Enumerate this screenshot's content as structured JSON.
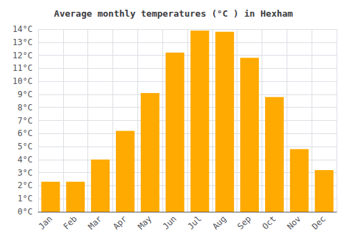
{
  "chart_data": {
    "type": "bar",
    "title": "Average monthly temperatures (°C ) in Hexham",
    "categories": [
      "Jan",
      "Feb",
      "Mar",
      "Apr",
      "May",
      "Jun",
      "Jul",
      "Aug",
      "Sep",
      "Oct",
      "Nov",
      "Dec"
    ],
    "values": [
      2.3,
      2.3,
      4.0,
      6.2,
      9.1,
      12.2,
      13.9,
      13.8,
      11.8,
      8.8,
      4.8,
      3.2
    ],
    "color": "#FFAA00",
    "ylim": [
      0,
      14
    ],
    "yticks": [
      {
        "value": 0,
        "label": "0°C"
      },
      {
        "value": 1,
        "label": "1°C"
      },
      {
        "value": 2,
        "label": "2°C"
      },
      {
        "value": 3,
        "label": "3°C"
      },
      {
        "value": 4,
        "label": "4°C"
      },
      {
        "value": 5,
        "label": "5°C"
      },
      {
        "value": 6,
        "label": "6°C"
      },
      {
        "value": 7,
        "label": "7°C"
      },
      {
        "value": 8,
        "label": "8°C"
      },
      {
        "value": 9,
        "label": "9°C"
      },
      {
        "value": 10,
        "label": "10°C"
      },
      {
        "value": 11,
        "label": "11°C"
      },
      {
        "value": 12,
        "label": "12°C"
      },
      {
        "value": 13,
        "label": "13°C"
      },
      {
        "value": 14,
        "label": "14°C"
      }
    ],
    "grid": true
  }
}
